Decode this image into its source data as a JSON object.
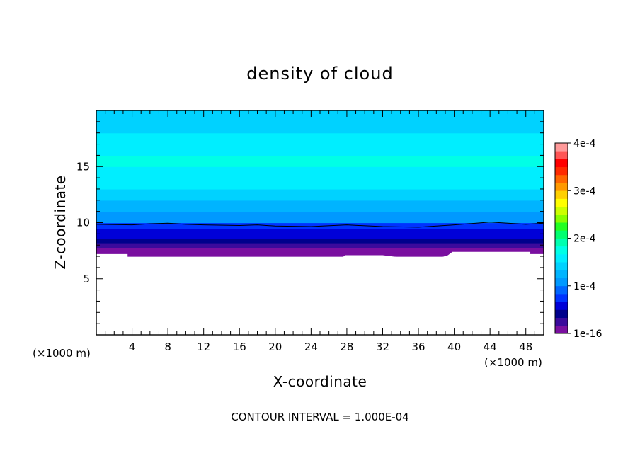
{
  "chart_data": {
    "type": "heatmap",
    "title": "density of cloud",
    "xlabel": "X-coordinate",
    "ylabel": "Z-coordinate",
    "x_unit": "(×1000 m)",
    "z_unit": "(×1000 m)",
    "xlim": [
      0,
      50
    ],
    "zlim": [
      0,
      20
    ],
    "x_ticks": [
      4,
      8,
      12,
      16,
      20,
      24,
      28,
      32,
      36,
      40,
      44,
      48
    ],
    "z_ticks": [
      5,
      10,
      15
    ],
    "contour_interval_label": "CONTOUR INTERVAL = 1.000E-04",
    "colorbar": {
      "tick_labels": [
        "4e-4",
        "3e-4",
        "2e-4",
        "1e-4",
        "1e-16"
      ],
      "tick_values": [
        0.0004,
        0.0003,
        0.0002,
        0.0001,
        0
      ],
      "range": [
        0,
        0.0004
      ],
      "colors": [
        "#7a0fa0",
        "#3b0a9c",
        "#00008c",
        "#0000d8",
        "#0033ff",
        "#0066ff",
        "#0099ff",
        "#00b4ff",
        "#00d2ff",
        "#00eeff",
        "#00ffe6",
        "#00ffb0",
        "#00ff70",
        "#22ff22",
        "#88ff00",
        "#ccff00",
        "#ffff00",
        "#ffd000",
        "#ff9900",
        "#ff6600",
        "#ff2a00",
        "#ff0000",
        "#ff5555",
        "#ff9a9a"
      ]
    },
    "cloud_profile": [
      {
        "z": 7.0,
        "value": 2e-06
      },
      {
        "z": 7.4,
        "value": 1e-05
      },
      {
        "z": 7.8,
        "value": 2.5e-05
      },
      {
        "z": 8.2,
        "value": 3.5e-05
      },
      {
        "z": 8.6,
        "value": 5e-05
      },
      {
        "z": 9.0,
        "value": 6e-05
      },
      {
        "z": 9.5,
        "value": 7e-05
      },
      {
        "z": 10.0,
        "value": 0.0001
      },
      {
        "z": 10.5,
        "value": 0.00011
      },
      {
        "z": 11.0,
        "value": 0.000118
      },
      {
        "z": 11.5,
        "value": 0.000125
      },
      {
        "z": 12.0,
        "value": 0.000135
      },
      {
        "z": 12.5,
        "value": 0.000145
      },
      {
        "z": 13.0,
        "value": 0.000155
      },
      {
        "z": 14.0,
        "value": 0.000165
      },
      {
        "z": 15.0,
        "value": 0.00017
      },
      {
        "z": 16.0,
        "value": 0.000165
      },
      {
        "z": 17.0,
        "value": 0.000155
      },
      {
        "z": 18.0,
        "value": 0.000145
      },
      {
        "z": 19.0,
        "value": 0.00014
      },
      {
        "z": 20.0,
        "value": 0.000135
      }
    ],
    "cloud_base": [
      {
        "x": 0,
        "z": 7.2
      },
      {
        "x": 3.5,
        "z": 7.2
      },
      {
        "x": 3.5,
        "z": 6.9
      },
      {
        "x": 18,
        "z": 6.9
      },
      {
        "x": 18.3,
        "z": 6.7
      },
      {
        "x": 18.7,
        "z": 6.9
      },
      {
        "x": 27.5,
        "z": 6.9
      },
      {
        "x": 27.8,
        "z": 7.1
      },
      {
        "x": 32,
        "z": 7.1
      },
      {
        "x": 34,
        "z": 6.9
      },
      {
        "x": 38.5,
        "z": 6.9
      },
      {
        "x": 39.3,
        "z": 7.1
      },
      {
        "x": 39.8,
        "z": 7.4
      },
      {
        "x": 48.5,
        "z": 7.4
      },
      {
        "x": 48.5,
        "z": 7.2
      },
      {
        "x": 50,
        "z": 7.2
      }
    ],
    "contour_1e-4": [
      {
        "x": 0,
        "z": 9.85
      },
      {
        "x": 4,
        "z": 9.8
      },
      {
        "x": 6,
        "z": 9.9
      },
      {
        "x": 8,
        "z": 9.95
      },
      {
        "x": 10,
        "z": 9.85
      },
      {
        "x": 12,
        "z": 9.8
      },
      {
        "x": 16,
        "z": 9.75
      },
      {
        "x": 18,
        "z": 9.8
      },
      {
        "x": 20,
        "z": 9.7
      },
      {
        "x": 24,
        "z": 9.65
      },
      {
        "x": 28,
        "z": 9.8
      },
      {
        "x": 32,
        "z": 9.65
      },
      {
        "x": 36,
        "z": 9.6
      },
      {
        "x": 40,
        "z": 9.8
      },
      {
        "x": 44,
        "z": 10.05
      },
      {
        "x": 46,
        "z": 9.95
      },
      {
        "x": 48,
        "z": 9.85
      },
      {
        "x": 50,
        "z": 9.95
      }
    ]
  }
}
